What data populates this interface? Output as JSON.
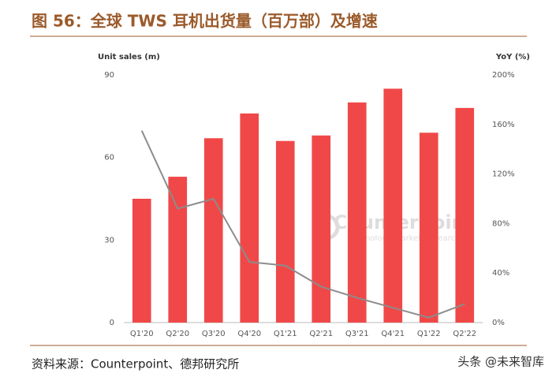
{
  "chart_data": {
    "type": "bar-line",
    "title": "图 56：全球 TWS 耳机出货量（百万部）及增速",
    "y_label": "Unit sales (m)",
    "y2_label": "YoY (%)",
    "source": "资料来源：Counterpoint、德邦研究所",
    "watermarks": [
      "Counterpoint",
      "Technology Market Research",
      "头条 @未来智库"
    ],
    "categories": [
      "Q1'20",
      "Q2'20",
      "Q3'20",
      "Q4'20",
      "Q1'21",
      "Q2'21",
      "Q3'21",
      "Q4'21",
      "Q1'22",
      "Q2'22"
    ],
    "series": [
      {
        "name": "Unit sales",
        "type": "bar",
        "color": "#f04848",
        "values": [
          45,
          53,
          67,
          76,
          66,
          68,
          80,
          85,
          69,
          78
        ]
      },
      {
        "name": "YoY",
        "type": "line",
        "axis": "y2",
        "color": "#8c8c8c",
        "values": [
          155,
          92,
          100,
          49,
          46,
          29,
          20,
          12,
          4,
          15
        ]
      }
    ],
    "ylim": [
      0,
      90
    ],
    "yticks": [
      0,
      30,
      60,
      90
    ],
    "y2lim": [
      0,
      200
    ],
    "y2ticks": [
      {
        "value": 0,
        "label": "0%"
      },
      {
        "value": 40,
        "label": "40%"
      },
      {
        "value": 80,
        "label": "80%"
      },
      {
        "value": 120,
        "label": "120%"
      },
      {
        "value": 160,
        "label": "160%"
      },
      {
        "value": 200,
        "label": "200%"
      }
    ],
    "grid": false
  }
}
